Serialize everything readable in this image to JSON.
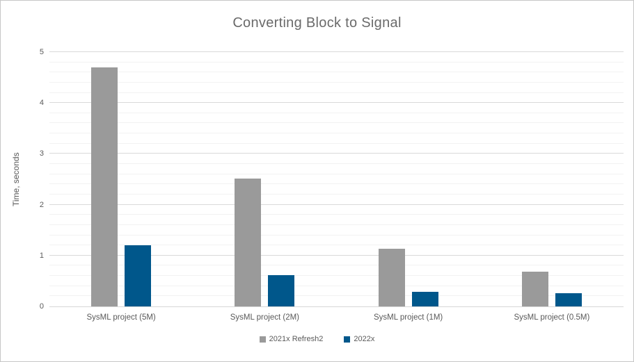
{
  "chart_data": {
    "type": "bar",
    "title": "Converting Block to Signal",
    "xlabel": "",
    "ylabel": "Time, seconds",
    "categories": [
      "SysML project (5M)",
      "SysML project (2M)",
      "SysML project (1M)",
      "SysML project (0.5M)"
    ],
    "series": [
      {
        "name": "2021x Refresh2",
        "color": "#9a9a9a",
        "values": [
          4.7,
          2.52,
          1.14,
          0.69
        ]
      },
      {
        "name": "2022x",
        "color": "#00578b",
        "values": [
          1.2,
          0.62,
          0.29,
          0.26
        ]
      }
    ],
    "ylim": [
      0,
      5
    ],
    "y_major_ticks": [
      0,
      1,
      2,
      3,
      4,
      5
    ],
    "y_minor_interval": 0.2,
    "grid": true,
    "legend_position": "bottom",
    "colors": {
      "major_gridline": "#d9d9d9",
      "minor_gridline": "#f2f2f2",
      "axis_line": "#d6d6d6",
      "axis_text": "#595959",
      "title_text": "#6a6a6a",
      "border": "#c6c6c6"
    }
  }
}
